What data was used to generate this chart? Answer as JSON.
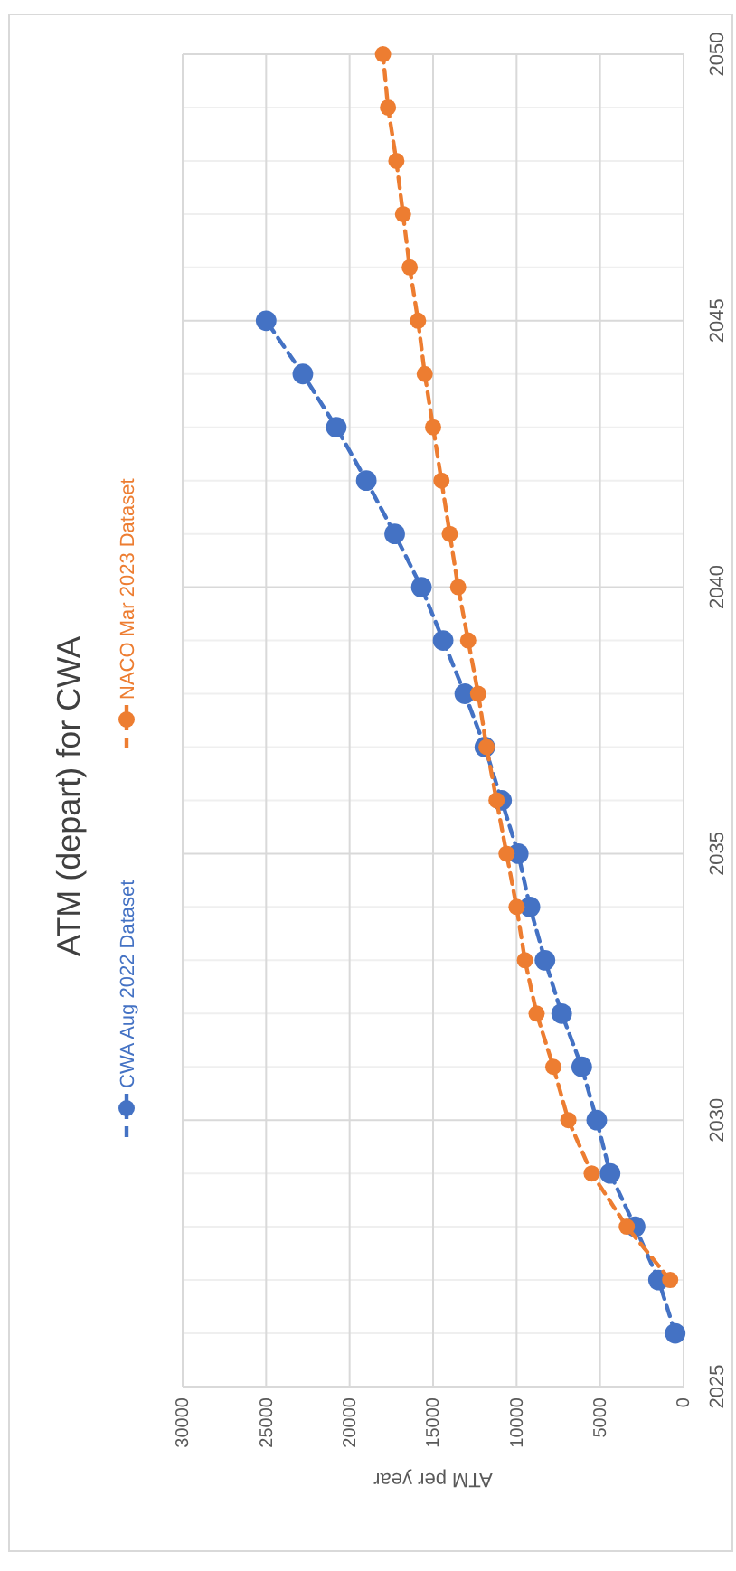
{
  "chart_data": {
    "type": "line",
    "title": "ATM (depart) for CWA",
    "xlabel": "ATM per year",
    "xlim": [
      30000,
      0
    ],
    "xticks": [
      30000,
      25000,
      20000,
      15000,
      10000,
      5000,
      0
    ],
    "ylim": [
      2025,
      2050
    ],
    "yticks": [
      2025,
      {
        "value": 2026,
        "label": null
      },
      {
        "value": 2027,
        "label": null
      },
      {
        "value": 2028,
        "label": null
      },
      {
        "value": 2029,
        "label": null
      },
      2030,
      {
        "value": 2031,
        "label": null
      },
      {
        "value": 2032,
        "label": null
      },
      {
        "value": 2033,
        "label": null
      },
      {
        "value": 2034,
        "label": null
      },
      2035,
      {
        "value": 2036,
        "label": null
      },
      {
        "value": 2037,
        "label": null
      },
      {
        "value": 2038,
        "label": null
      },
      {
        "value": 2039,
        "label": null
      },
      2040,
      {
        "value": 2041,
        "label": null
      },
      {
        "value": 2042,
        "label": null
      },
      {
        "value": 2043,
        "label": null
      },
      {
        "value": 2044,
        "label": null
      },
      2045,
      {
        "value": 2046,
        "label": null
      },
      {
        "value": 2047,
        "label": null
      },
      {
        "value": 2048,
        "label": null
      },
      {
        "value": 2049,
        "label": null
      },
      2050
    ],
    "grid": true,
    "legend": "left",
    "marker": "circle",
    "line_style": "dashed",
    "series": [
      {
        "name": "CWA Aug 2022 Dataset",
        "color": "#4472c4",
        "x": [
          500,
          1500,
          2900,
          4400,
          5200,
          6100,
          7300,
          8300,
          9200,
          9900,
          10900,
          11900,
          13100,
          14400,
          15700,
          17300,
          19000,
          20800,
          22800,
          25000
        ],
        "values": [
          2026,
          2027,
          2028,
          2029,
          2030,
          2031,
          2032,
          2033,
          2034,
          2035,
          2036,
          2037,
          2038,
          2039,
          2040,
          2041,
          2042,
          2043,
          2044,
          2045
        ]
      },
      {
        "name": "NACO Mar 2023 Dataset",
        "color": "#ed7d31",
        "x": [
          800,
          3400,
          5500,
          6900,
          7800,
          8800,
          9500,
          10000,
          10600,
          11200,
          11800,
          12300,
          12900,
          13500,
          14000,
          14500,
          15000,
          15500,
          15900,
          16400,
          16800,
          17200,
          17700,
          18000
        ],
        "values": [
          2027,
          2028,
          2029,
          2030,
          2031,
          2032,
          2033,
          2034,
          2035,
          2036,
          2037,
          2038,
          2039,
          2040,
          2041,
          2042,
          2043,
          2044,
          2045,
          2046,
          2047,
          2048,
          2049,
          2050
        ]
      }
    ]
  }
}
